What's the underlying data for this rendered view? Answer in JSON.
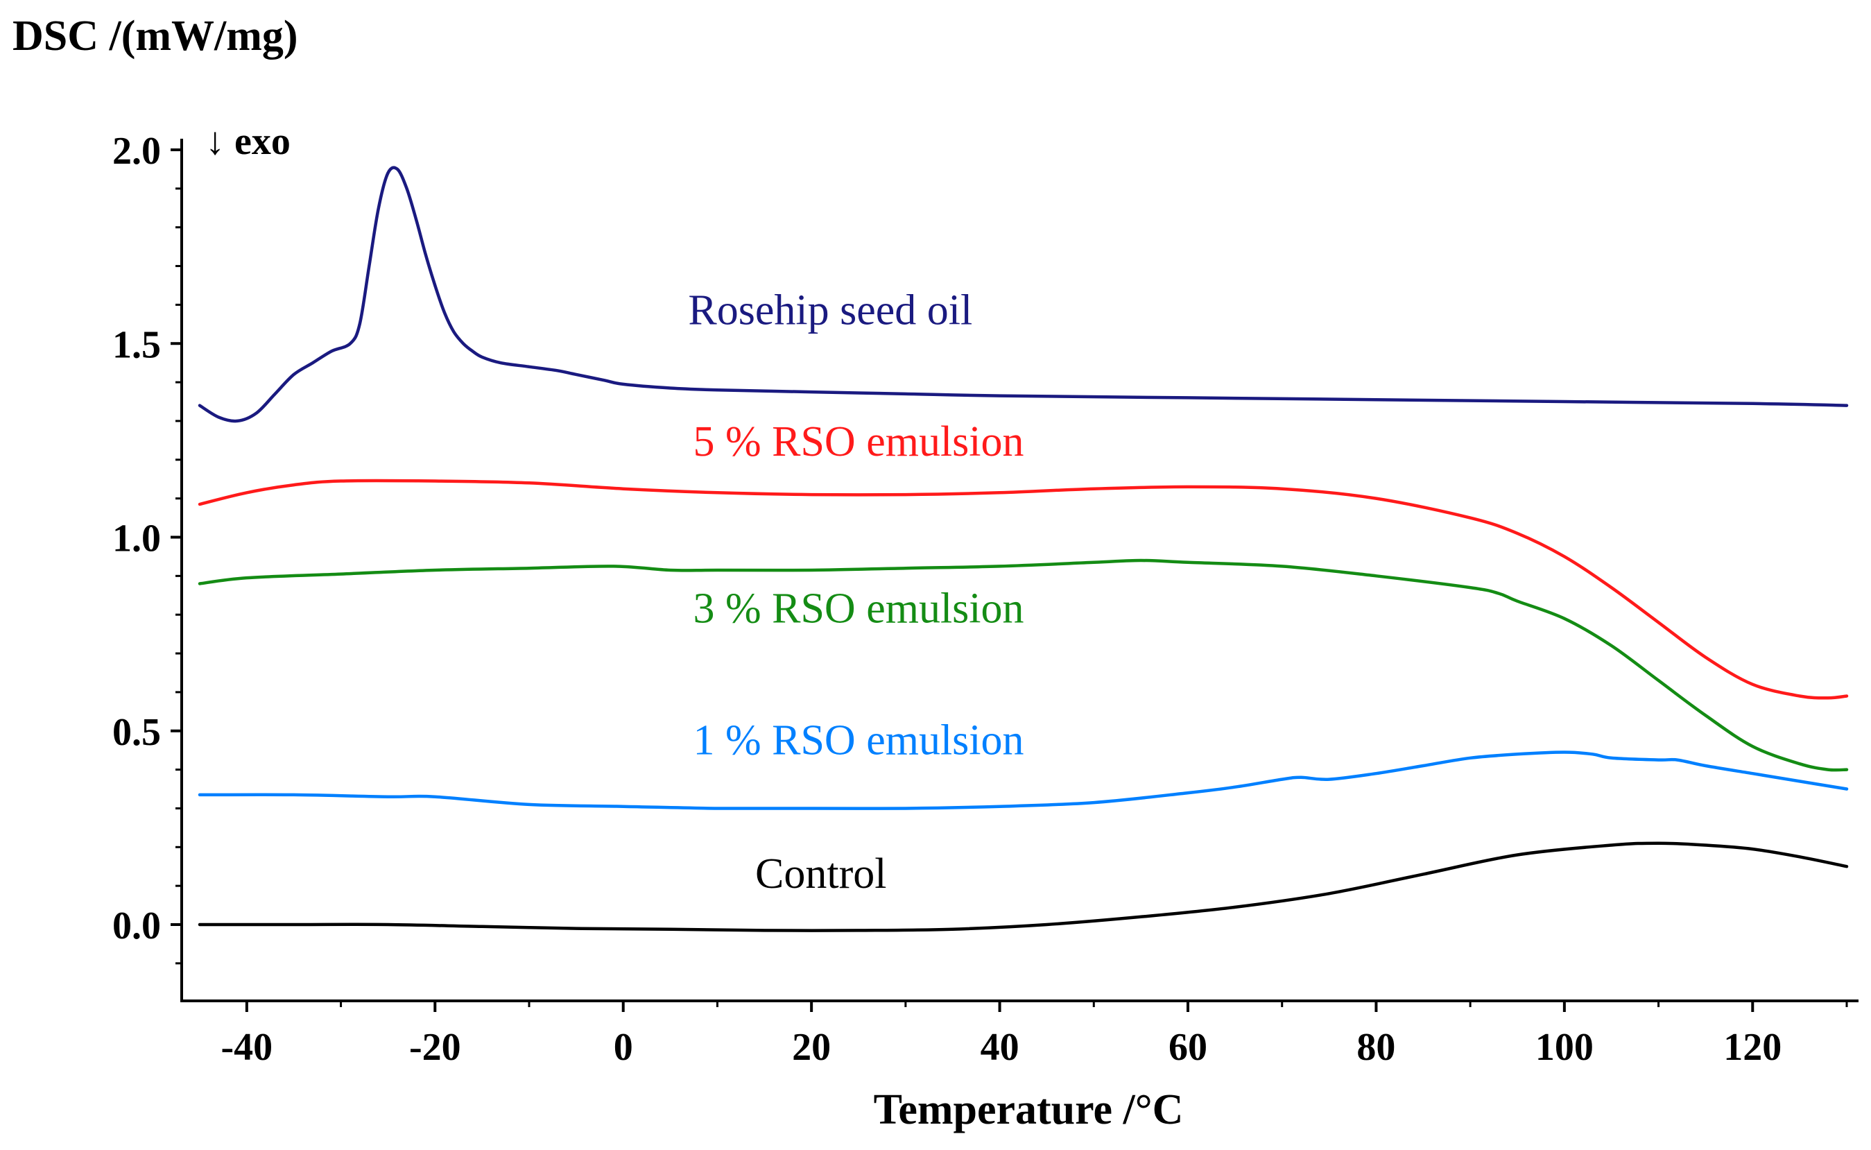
{
  "chart_data": {
    "type": "line",
    "ylabel": "DSC /(mW/mg)",
    "xlabel": "Temperature /°C",
    "annotation": "↓ exo",
    "xlim": [
      -45,
      130
    ],
    "ylim": [
      -0.2,
      2.05
    ],
    "grid": false,
    "x_ticks": [
      {
        "value": -40,
        "label": "-40"
      },
      {
        "value": -20,
        "label": "-20"
      },
      {
        "value": 0,
        "label": "0"
      },
      {
        "value": 20,
        "label": "20"
      },
      {
        "value": 40,
        "label": "40"
      },
      {
        "value": 60,
        "label": "60"
      },
      {
        "value": 80,
        "label": "80"
      },
      {
        "value": 100,
        "label": "100"
      },
      {
        "value": 120,
        "label": "120"
      }
    ],
    "y_ticks": [
      {
        "value": 0.0,
        "label": "0.0"
      },
      {
        "value": 0.5,
        "label": "0.5"
      },
      {
        "value": 1.0,
        "label": "1.0"
      },
      {
        "value": 1.5,
        "label": "1.5"
      },
      {
        "value": 2.0,
        "label": "2.0"
      }
    ],
    "series": [
      {
        "name": "Rosehip seed oil",
        "color": "#1a1a80",
        "label_at": {
          "x": 22,
          "y": 1.55
        },
        "x": [
          -45,
          -43,
          -41,
          -39,
          -37,
          -35,
          -33,
          -31,
          -29,
          -28,
          -27,
          -26,
          -25,
          -24,
          -23,
          -22,
          -21,
          -20,
          -19,
          -18,
          -17,
          -16,
          -15,
          -13,
          -10,
          -7,
          -5,
          -2,
          0,
          5,
          10,
          20,
          30,
          40,
          60,
          80,
          100,
          120,
          130
        ],
        "y": [
          1.34,
          1.31,
          1.3,
          1.32,
          1.37,
          1.42,
          1.45,
          1.48,
          1.5,
          1.55,
          1.7,
          1.85,
          1.94,
          1.95,
          1.9,
          1.82,
          1.73,
          1.65,
          1.58,
          1.53,
          1.5,
          1.48,
          1.465,
          1.45,
          1.44,
          1.43,
          1.42,
          1.405,
          1.395,
          1.385,
          1.38,
          1.375,
          1.37,
          1.365,
          1.36,
          1.355,
          1.35,
          1.345,
          1.34
        ]
      },
      {
        "name": "5 % RSO emulsion",
        "color": "#ff1a1a",
        "label_at": {
          "x": 25,
          "y": 1.21
        },
        "x": [
          -45,
          -40,
          -35,
          -30,
          -20,
          -10,
          0,
          10,
          20,
          30,
          40,
          50,
          60,
          70,
          80,
          90,
          95,
          100,
          105,
          110,
          115,
          120,
          125,
          128,
          130
        ],
        "y": [
          1.085,
          1.115,
          1.135,
          1.145,
          1.145,
          1.14,
          1.125,
          1.115,
          1.11,
          1.11,
          1.115,
          1.125,
          1.13,
          1.125,
          1.1,
          1.05,
          1.01,
          0.95,
          0.87,
          0.78,
          0.69,
          0.62,
          0.59,
          0.585,
          0.59
        ]
      },
      {
        "name": "3 % RSO emulsion",
        "color": "#148c14",
        "label_at": {
          "x": 25,
          "y": 0.78
        },
        "x": [
          -45,
          -40,
          -30,
          -20,
          -10,
          -1,
          5,
          10,
          20,
          30,
          40,
          50,
          55,
          60,
          70,
          80,
          90,
          93,
          95,
          100,
          105,
          110,
          115,
          120,
          125,
          128,
          130
        ],
        "y": [
          0.88,
          0.895,
          0.905,
          0.915,
          0.92,
          0.925,
          0.915,
          0.915,
          0.915,
          0.92,
          0.925,
          0.935,
          0.94,
          0.935,
          0.925,
          0.9,
          0.87,
          0.855,
          0.835,
          0.79,
          0.72,
          0.63,
          0.54,
          0.46,
          0.415,
          0.4,
          0.4
        ]
      },
      {
        "name": "1 % RSO emulsion",
        "color": "#0080ff",
        "label_at": {
          "x": 25,
          "y": 0.44
        },
        "x": [
          -45,
          -35,
          -25,
          -20,
          -10,
          0,
          10,
          20,
          30,
          40,
          50,
          60,
          65,
          70,
          72,
          75,
          80,
          85,
          90,
          95,
          100,
          103,
          105,
          110,
          112,
          115,
          120,
          125,
          130
        ],
        "y": [
          0.335,
          0.335,
          0.33,
          0.33,
          0.31,
          0.305,
          0.3,
          0.3,
          0.3,
          0.305,
          0.315,
          0.34,
          0.355,
          0.375,
          0.38,
          0.375,
          0.39,
          0.41,
          0.43,
          0.44,
          0.445,
          0.44,
          0.43,
          0.425,
          0.425,
          0.41,
          0.39,
          0.37,
          0.35
        ]
      },
      {
        "name": "Control",
        "color": "#000000",
        "label_at": {
          "x": 21,
          "y": 0.095
        },
        "x": [
          -45,
          -35,
          -25,
          -15,
          -5,
          5,
          15,
          25,
          35,
          45,
          55,
          65,
          75,
          85,
          95,
          105,
          110,
          115,
          120,
          125,
          130
        ],
        "y": [
          0.0,
          0.0,
          0.0,
          -0.005,
          -0.01,
          -0.012,
          -0.015,
          -0.015,
          -0.012,
          0.0,
          0.02,
          0.045,
          0.08,
          0.13,
          0.18,
          0.205,
          0.21,
          0.205,
          0.195,
          0.175,
          0.15
        ]
      }
    ]
  }
}
